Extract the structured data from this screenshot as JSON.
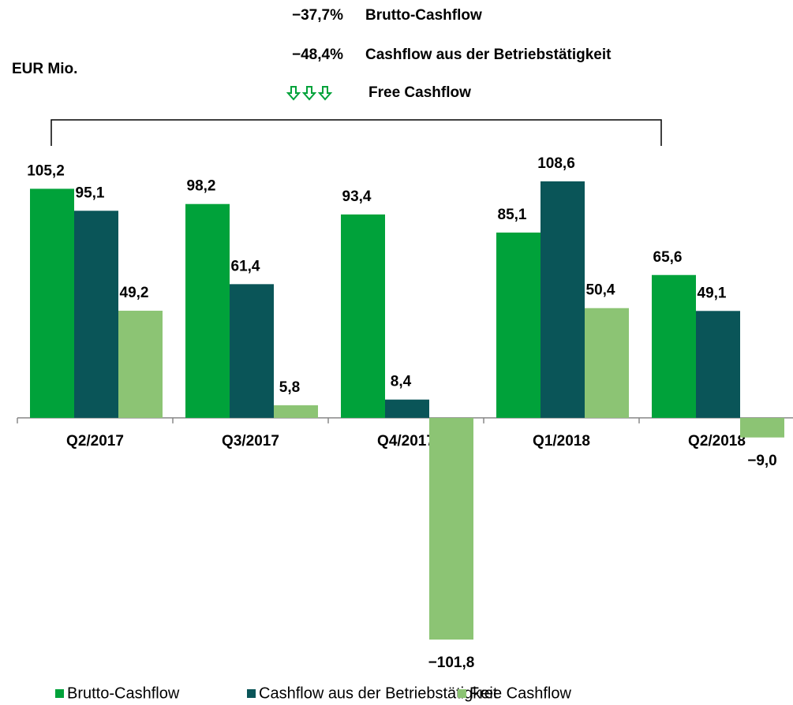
{
  "chart_data": {
    "type": "bar",
    "unit_label": "EUR Mio.",
    "annotations": [
      {
        "change": "−37,7%",
        "text": "Brutto-Cashflow"
      },
      {
        "change": "−48,4%",
        "text": "Cashflow aus der Betriebstätigkeit"
      },
      {
        "text": "Free Cashflow"
      }
    ],
    "categories": [
      "Q2/2017",
      "Q3/2017",
      "Q4/2017",
      "Q1/2018",
      "Q2/2018"
    ],
    "series": [
      {
        "name": "Brutto-Cashflow",
        "color": "#00a23a",
        "values": [
          105.2,
          98.2,
          93.4,
          85.1,
          65.6
        ],
        "value_labels": [
          "105,2",
          "98,2",
          "93,4",
          "85,1",
          "65,6"
        ]
      },
      {
        "name": "Cashflow aus der Betriebstätigkeit",
        "color": "#0a5558",
        "values": [
          95.1,
          61.4,
          8.4,
          108.6,
          49.1
        ],
        "value_labels": [
          "95,1",
          "61,4",
          "8,4",
          "108,6",
          "49,1"
        ]
      },
      {
        "name": "Free Cashflow",
        "color": "#8cc474",
        "values": [
          49.2,
          5.8,
          -101.8,
          50.4,
          -9.0
        ],
        "value_labels": [
          "49,2",
          "5,8",
          "−101,8",
          "50,4",
          "−9,0"
        ]
      }
    ]
  }
}
